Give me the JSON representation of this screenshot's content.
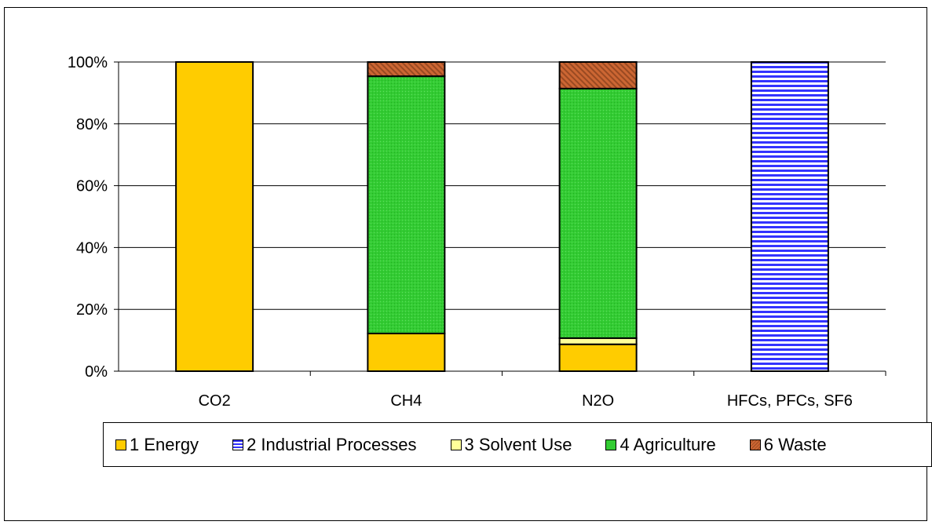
{
  "chart_data": {
    "type": "bar",
    "stacked": true,
    "percent": true,
    "categories": [
      "CO2",
      "CH4",
      "N2O",
      "HFCs, PFCs, SF6"
    ],
    "series": [
      {
        "name": "1 Energy",
        "color": "#FFCC00",
        "pattern": "solid",
        "values": [
          100,
          12.2,
          8.7,
          0
        ]
      },
      {
        "name": "2 Industrial Processes",
        "color": "#3333FF",
        "pattern": "horizontal-stripes",
        "values": [
          0,
          0,
          0,
          100
        ]
      },
      {
        "name": "3 Solvent Use",
        "color": "#FFFF99",
        "pattern": "solid",
        "values": [
          0,
          0,
          2.0,
          0
        ]
      },
      {
        "name": "4 Agriculture",
        "color": "#33CC33",
        "pattern": "dotted",
        "values": [
          0,
          83.2,
          80.7,
          0
        ]
      },
      {
        "name": "6 Waste",
        "color": "#CC6633",
        "pattern": "diagonal-stripes",
        "values": [
          0,
          4.6,
          8.6,
          0
        ]
      }
    ],
    "ylim": [
      0,
      100
    ],
    "yticks": [
      "0%",
      "20%",
      "40%",
      "60%",
      "80%",
      "100%"
    ],
    "grid": true,
    "legend_position": "bottom"
  }
}
